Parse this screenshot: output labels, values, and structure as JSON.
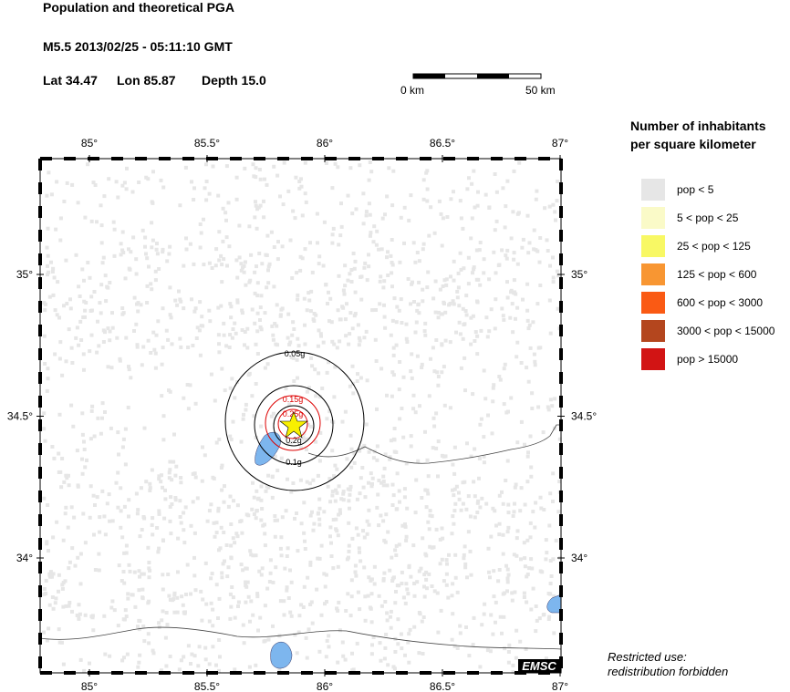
{
  "header": {
    "title": "Population and theoretical PGA",
    "event": "M5.5  2013/02/25 - 05:11:10 GMT",
    "lat": "Lat 34.47",
    "lon": "Lon  85.87",
    "depth": "Depth  15.0"
  },
  "scale_bar": {
    "start": "0 km",
    "end": "50 km"
  },
  "map": {
    "lon_ticks": [
      {
        "value": 85,
        "label": "85°"
      },
      {
        "value": 85.5,
        "label": "85.5°"
      },
      {
        "value": 86,
        "label": "86°"
      },
      {
        "value": 86.5,
        "label": "86.5°"
      },
      {
        "value": 87,
        "label": "87°"
      }
    ],
    "lat_ticks": [
      {
        "value": 35,
        "label": "35°"
      },
      {
        "value": 34.5,
        "label": "34.5°"
      },
      {
        "value": 34,
        "label": "34°"
      }
    ],
    "contours": [
      {
        "label": "0.05g",
        "color": "#000000"
      },
      {
        "label": "0.1g",
        "color": "#000000"
      },
      {
        "label": "0.15g",
        "color": "#dd0000"
      },
      {
        "label": "0.2g",
        "color": "#000000"
      },
      {
        "label": "0.25g",
        "color": "#dd0000"
      }
    ],
    "badge": "EMSC"
  },
  "legend": {
    "title_1": "Number of inhabitants",
    "title_2": "per square kilometer",
    "items": [
      {
        "label": "pop < 5",
        "color": "#e6e6e6"
      },
      {
        "label": "5 < pop < 25",
        "color": "#fafac8"
      },
      {
        "label": "25 < pop < 125",
        "color": "#f8f864"
      },
      {
        "label": "125 < pop < 600",
        "color": "#f89632"
      },
      {
        "label": "600 < pop < 3000",
        "color": "#fa5a14"
      },
      {
        "label": "3000 < pop < 15000",
        "color": "#b4461e"
      },
      {
        "label": "pop > 15000",
        "color": "#d21414"
      }
    ]
  },
  "footer": {
    "line_1": "Restricted use:",
    "line_2": "redistribution forbidden"
  }
}
